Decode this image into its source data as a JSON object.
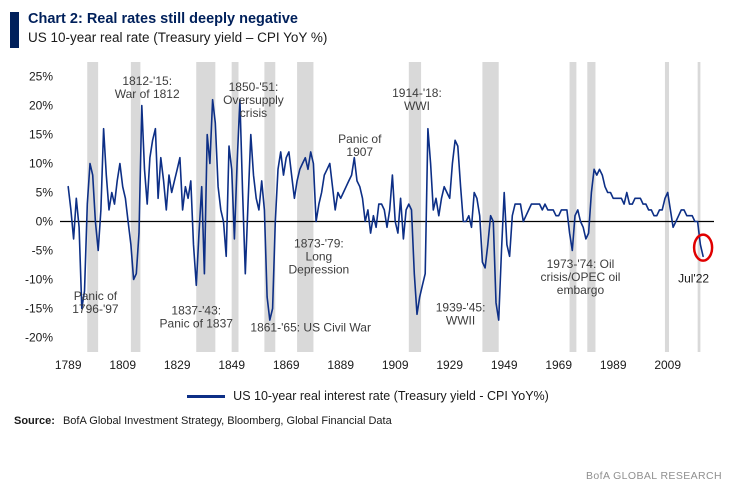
{
  "header": {
    "title": "Chart 2: Real rates still deeply negative",
    "subtitle": "US 10-year real rate (Treasury yield – CPI YoY %)"
  },
  "legend": {
    "label": "US 10-year real interest rate (Treasury yield - CPI YoY%)"
  },
  "source": {
    "label": "Source:",
    "text": "BofA Global Investment Strategy, Bloomberg, Global Financial Data"
  },
  "branding": "BofA GLOBAL RESEARCH",
  "colors": {
    "line": "#0d2f86",
    "band": "#d9d9d9",
    "highlight": "#e00000",
    "accent": "#00205b",
    "zero_line": "#000000"
  },
  "chart_data": {
    "type": "line",
    "title": "US 10-year real rate (Treasury yield – CPI YoY %)",
    "xlabel": "",
    "ylabel": "",
    "grid": false,
    "legend_position": "bottom",
    "x_ticks": [
      1789,
      1809,
      1829,
      1849,
      1869,
      1889,
      1909,
      1929,
      1949,
      1969,
      1989,
      2009
    ],
    "y_ticks": [
      25,
      20,
      15,
      10,
      5,
      0,
      -5,
      -10,
      -15,
      -20
    ],
    "xlim": [
      1786,
      2026
    ],
    "ylim": [
      -22.5,
      27.5
    ],
    "zero_line": true,
    "series": [
      {
        "name": "US 10-year real interest rate (Treasury yield - CPI YoY%)",
        "x_start": 1789,
        "x_step": 1,
        "values": [
          6,
          2,
          -3,
          4,
          -1,
          -15,
          -12,
          3,
          10,
          8,
          0,
          -5,
          2,
          16,
          8,
          2,
          5,
          3,
          7,
          10,
          6,
          4,
          0,
          -4,
          -10,
          -9,
          -2,
          20,
          9,
          3,
          11,
          14,
          16,
          4,
          11,
          7,
          2,
          8,
          5,
          7,
          9,
          11,
          2,
          6,
          4,
          7,
          -4,
          -11,
          -2,
          6,
          -9,
          15,
          10,
          21,
          17,
          6,
          2,
          0,
          -6,
          13,
          9,
          -3,
          10,
          21,
          5,
          -9,
          3,
          15,
          8,
          4,
          2,
          7,
          2,
          -13,
          -17,
          -15,
          0,
          9,
          12,
          8,
          11,
          12,
          8,
          4,
          7,
          9,
          10,
          11,
          9,
          12,
          10,
          0,
          3,
          5,
          8,
          9,
          10,
          6,
          2,
          5,
          4,
          5,
          6,
          7,
          8,
          11,
          7,
          6,
          4,
          0,
          2,
          -2,
          1,
          -1,
          3,
          3,
          2,
          -1,
          2,
          8,
          0,
          -2,
          4,
          -3,
          2,
          3,
          2,
          -9,
          -16,
          -13,
          -11,
          -9,
          16,
          10,
          2,
          4,
          1,
          4,
          6,
          5,
          4,
          10,
          14,
          13,
          6,
          0,
          0,
          1,
          -1,
          5,
          4,
          1,
          -7,
          -8,
          -4,
          1,
          0,
          -14,
          -17,
          -5,
          5,
          -4,
          -6,
          1,
          3,
          3,
          3,
          0,
          1,
          2,
          3,
          3,
          3,
          3,
          2,
          3,
          2,
          2,
          2,
          1,
          1,
          2,
          2,
          2,
          -2,
          -5,
          1,
          2,
          0,
          -1,
          -3,
          -2,
          5,
          9,
          8,
          9,
          8,
          6,
          5,
          5,
          4,
          4,
          4,
          4,
          3,
          5,
          3,
          3,
          4,
          4,
          4,
          3,
          3,
          2,
          2,
          1,
          1,
          2,
          2,
          4,
          5,
          2,
          -1,
          0,
          1,
          2,
          2,
          1,
          1,
          1,
          0,
          0,
          -4,
          -6
        ]
      }
    ],
    "shaded_bands": [
      {
        "from": 1796,
        "to": 1800
      },
      {
        "from": 1812,
        "to": 1815.5
      },
      {
        "from": 1836,
        "to": 1843
      },
      {
        "from": 1849,
        "to": 1851.5
      },
      {
        "from": 1861,
        "to": 1865
      },
      {
        "from": 1873,
        "to": 1879
      },
      {
        "from": 1914,
        "to": 1918.5
      },
      {
        "from": 1941,
        "to": 1947
      },
      {
        "from": 1973,
        "to": 1975.5
      },
      {
        "from": 1979.5,
        "to": 1982.5
      },
      {
        "from": 2008,
        "to": 2009.5
      },
      {
        "from": 2020,
        "to": 2021
      }
    ],
    "annotations": [
      {
        "x": 1818,
        "y": 23.5,
        "lines": [
          "1812-'15:",
          "War of 1812"
        ]
      },
      {
        "x": 1857,
        "y": 22.5,
        "lines": [
          "1850-'51:",
          "Oversupply",
          "crisis"
        ]
      },
      {
        "x": 1896,
        "y": 13.5,
        "lines": [
          "Panic of",
          "1907"
        ]
      },
      {
        "x": 1917,
        "y": 21.5,
        "lines": [
          "1914-'18:",
          "WWI"
        ]
      },
      {
        "x": 1881,
        "y": -4.5,
        "lines": [
          "1873-'79:",
          "Long",
          "Depression"
        ]
      },
      {
        "x": 1799,
        "y": -13.5,
        "lines": [
          "Panic of",
          "1796-'97"
        ]
      },
      {
        "x": 1836,
        "y": -16,
        "lines": [
          "1837-'43:",
          "Panic of 1837"
        ]
      },
      {
        "x": 1878,
        "y": -19,
        "lines": [
          "1861-'65: US Civil War"
        ]
      },
      {
        "x": 1933,
        "y": -15.5,
        "lines": [
          "1939-'45:",
          "WWII"
        ]
      },
      {
        "x": 1977,
        "y": -8,
        "lines": [
          "1973-'74: Oil",
          "crisis/OPEC oil",
          "embargo"
        ]
      }
    ],
    "highlight": {
      "x": 2022,
      "y": -4.5,
      "label": "Jul'22",
      "label_x": 2018.5,
      "label_y": -10.5
    }
  }
}
